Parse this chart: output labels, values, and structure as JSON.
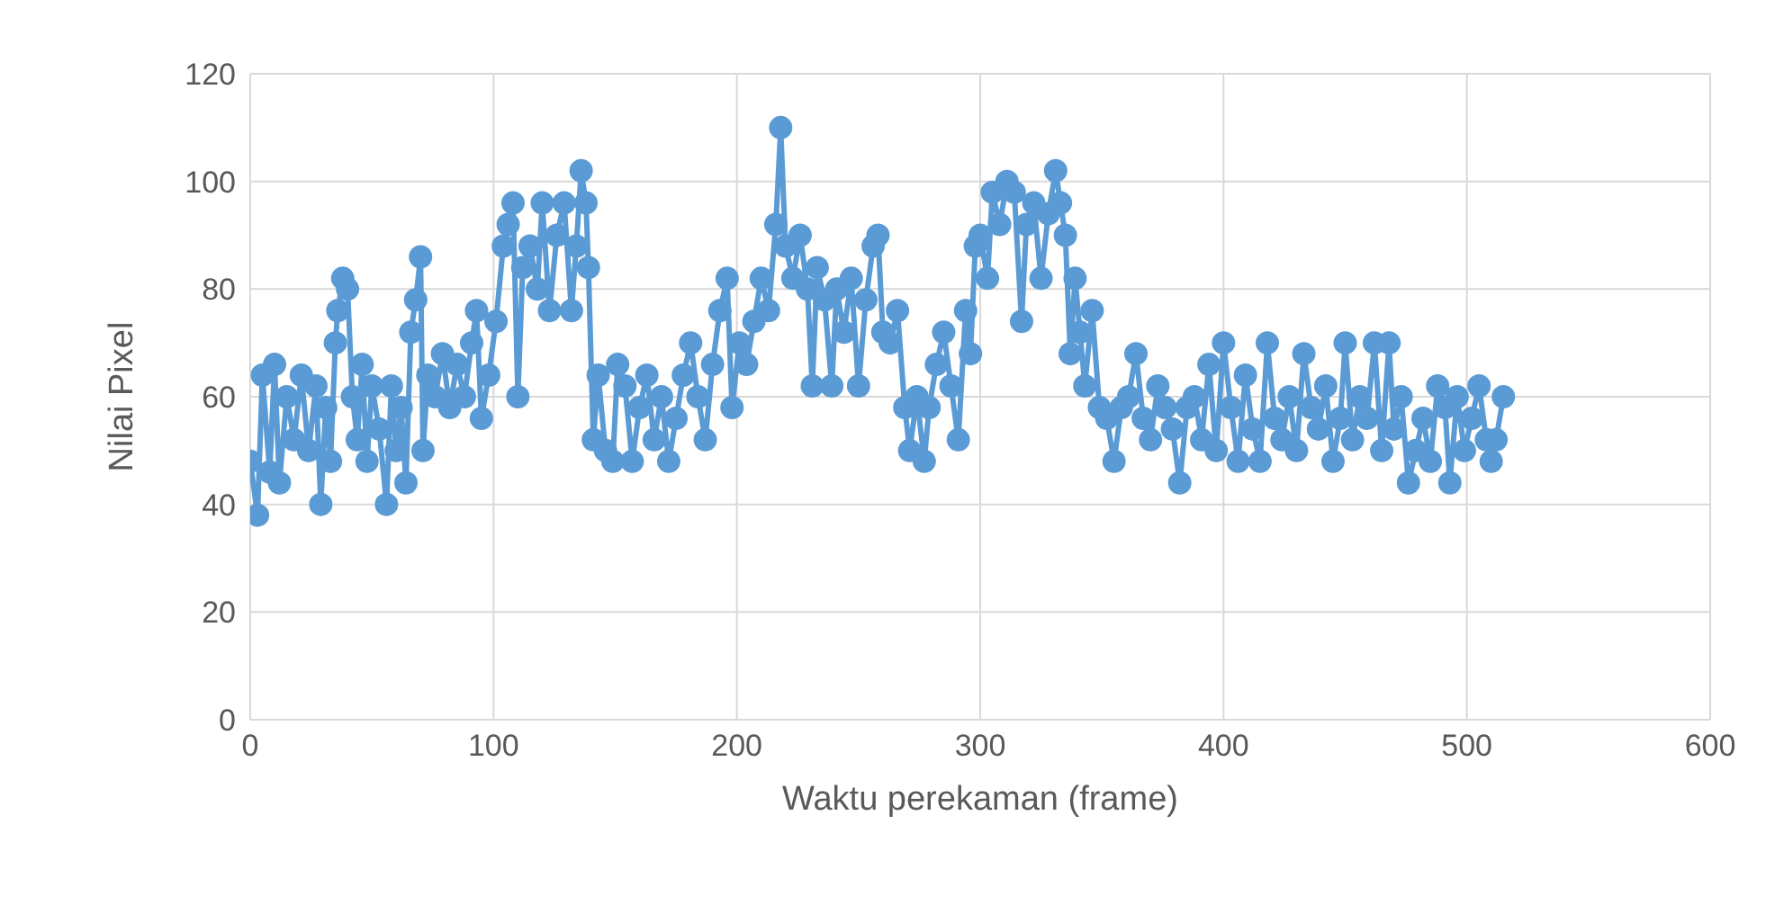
{
  "chart_data": {
    "type": "line",
    "xlabel": "Waktu perekaman (frame)",
    "ylabel": "Nilai Pixel",
    "xlim": [
      0,
      600
    ],
    "xticks": [
      0,
      100,
      200,
      300,
      400,
      500,
      600
    ],
    "ylim": [
      0,
      120
    ],
    "yticks": [
      0,
      20,
      40,
      60,
      80,
      100,
      120
    ],
    "grid": true,
    "marker": "circle",
    "line_style": "solid",
    "x": [
      0,
      3,
      5,
      8,
      10,
      12,
      15,
      18,
      21,
      24,
      27,
      29,
      31,
      33,
      35,
      36,
      38,
      40,
      42,
      44,
      46,
      48,
      50,
      53,
      56,
      58,
      60,
      62,
      64,
      66,
      68,
      70,
      71,
      73,
      76,
      79,
      82,
      85,
      88,
      91,
      93,
      95,
      98,
      101,
      104,
      106,
      108,
      110,
      112,
      115,
      118,
      120,
      123,
      126,
      129,
      132,
      134,
      136,
      138,
      139,
      141,
      143,
      146,
      149,
      151,
      154,
      157,
      160,
      163,
      166,
      169,
      172,
      175,
      178,
      181,
      184,
      187,
      190,
      193,
      196,
      198,
      201,
      204,
      207,
      210,
      213,
      216,
      218,
      220,
      223,
      226,
      229,
      231,
      233,
      236,
      239,
      241,
      244,
      247,
      250,
      253,
      256,
      258,
      260,
      263,
      266,
      269,
      271,
      274,
      277,
      279,
      282,
      285,
      288,
      291,
      294,
      296,
      298,
      300,
      303,
      305,
      308,
      311,
      314,
      317,
      319,
      322,
      325,
      328,
      331,
      333,
      335,
      337,
      339,
      341,
      343,
      346,
      349,
      352,
      355,
      358,
      361,
      364,
      367,
      370,
      373,
      376,
      379,
      382,
      385,
      388,
      391,
      394,
      397,
      400,
      403,
      406,
      409,
      412,
      415,
      418,
      421,
      424,
      427,
      430,
      433,
      436,
      439,
      442,
      445,
      448,
      450,
      453,
      456,
      459,
      462,
      465,
      468,
      470,
      473,
      476,
      479,
      482,
      485,
      488,
      491,
      493,
      496,
      499,
      502,
      505,
      508,
      510,
      512,
      515
    ],
    "series": [
      {
        "color": "#5b9bd5",
        "values": [
          48,
          38,
          64,
          46,
          66,
          44,
          60,
          52,
          64,
          50,
          62,
          40,
          58,
          48,
          70,
          76,
          82,
          80,
          60,
          52,
          66,
          48,
          62,
          54,
          40,
          62,
          50,
          58,
          44,
          72,
          78,
          86,
          50,
          64,
          60,
          68,
          58,
          66,
          60,
          70,
          76,
          56,
          64,
          74,
          88,
          92,
          96,
          60,
          84,
          88,
          80,
          96,
          76,
          90,
          96,
          76,
          88,
          102,
          96,
          84,
          52,
          64,
          50,
          48,
          66,
          62,
          48,
          58,
          64,
          52,
          60,
          48,
          56,
          64,
          70,
          60,
          52,
          66,
          76,
          82,
          58,
          70,
          66,
          74,
          82,
          76,
          92,
          110,
          88,
          82,
          90,
          80,
          62,
          84,
          78,
          62,
          80,
          72,
          82,
          62,
          78,
          88,
          90,
          72,
          70,
          76,
          58,
          50,
          60,
          48,
          58,
          66,
          72,
          62,
          52,
          76,
          68,
          88,
          90,
          82,
          98,
          92,
          100,
          98,
          74,
          92,
          96,
          82,
          94,
          102,
          96,
          90,
          68,
          82,
          72,
          62,
          76,
          58,
          56,
          48,
          58,
          60,
          68,
          56,
          52,
          62,
          58,
          54,
          44,
          58,
          60,
          52,
          66,
          50,
          70,
          58,
          48,
          64,
          54,
          48,
          70,
          56,
          52,
          60,
          50,
          68,
          58,
          54,
          62,
          48,
          56,
          70,
          52,
          60,
          56,
          70,
          50,
          70,
          54,
          60,
          44,
          50,
          56,
          48,
          62,
          58,
          44,
          60,
          50,
          56,
          62,
          52,
          48,
          52,
          60
        ]
      }
    ]
  }
}
